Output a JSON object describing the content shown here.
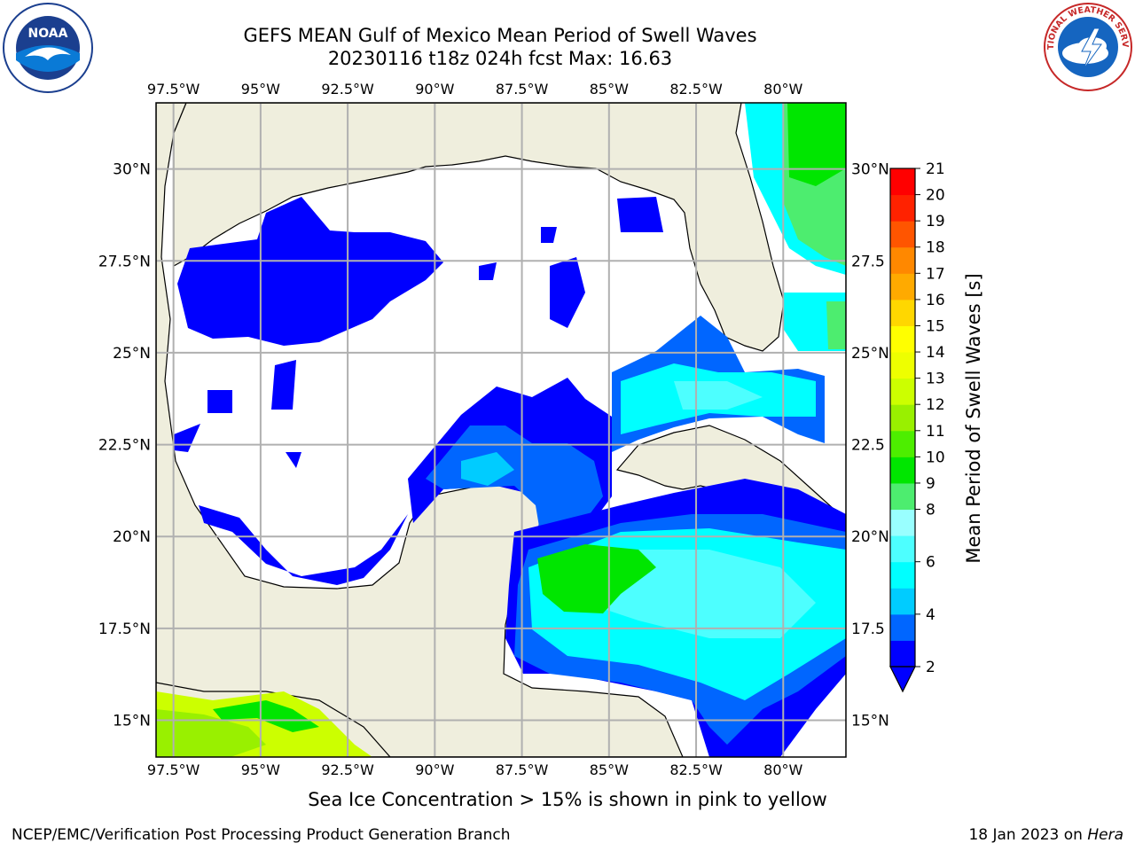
{
  "header": {
    "title_line1": "GEFS MEAN Gulf of Mexico Mean Period of Swell Waves",
    "title_line2": "20230116 t18z 024h fcst   Max: 16.63"
  },
  "logos": {
    "left": {
      "icon": "noaa-logo",
      "text": "NOAA"
    },
    "right": {
      "icon": "nws-logo",
      "text": "NATIONAL WEATHER SERVICE"
    }
  },
  "map": {
    "lon_ticks": [
      "97.5°W",
      "95°W",
      "92.5°W",
      "90°W",
      "87.5°W",
      "85°W",
      "82.5°W",
      "80°W"
    ],
    "lat_ticks_left": [
      "30°N",
      "27.5°N",
      "25°N",
      "22.5°N",
      "20°N",
      "17.5°N",
      "15°N"
    ],
    "lat_ticks_right": [
      "30°N",
      "27.5",
      "25°N",
      "22.5",
      "20°N",
      "17.5",
      "15°N"
    ],
    "land_color": "#efeedd",
    "ocean_color": "#ffffff",
    "grid_color": "#b0b0b0"
  },
  "colorbar": {
    "label": "Mean Period of Swell Waves [s]",
    "ticks": [
      "2",
      "4",
      "6",
      "8",
      "9",
      "10",
      "11",
      "12",
      "13",
      "14",
      "15",
      "16",
      "17",
      "18",
      "19",
      "20",
      "21"
    ],
    "colors": [
      "#0000ff",
      "#0066ff",
      "#00ccff",
      "#00ffff",
      "#4dffff",
      "#99ffff",
      "#4ded6f",
      "#00e600",
      "#4dee00",
      "#99f000",
      "#ccff00",
      "#eeff00",
      "#ffff00",
      "#ffd700",
      "#ffaa00",
      "#ff8800",
      "#ff5500",
      "#ff2200",
      "#ff0000"
    ],
    "extend_color": "#0000ff"
  },
  "footer": {
    "subnote": "Sea Ice Concentration > 15% is shown in pink to yellow",
    "left": "NCEP/EMC/Verification Post Processing Product Generation Branch",
    "right_date": "18 Jan 2023 on ",
    "right_host": "Hera"
  }
}
